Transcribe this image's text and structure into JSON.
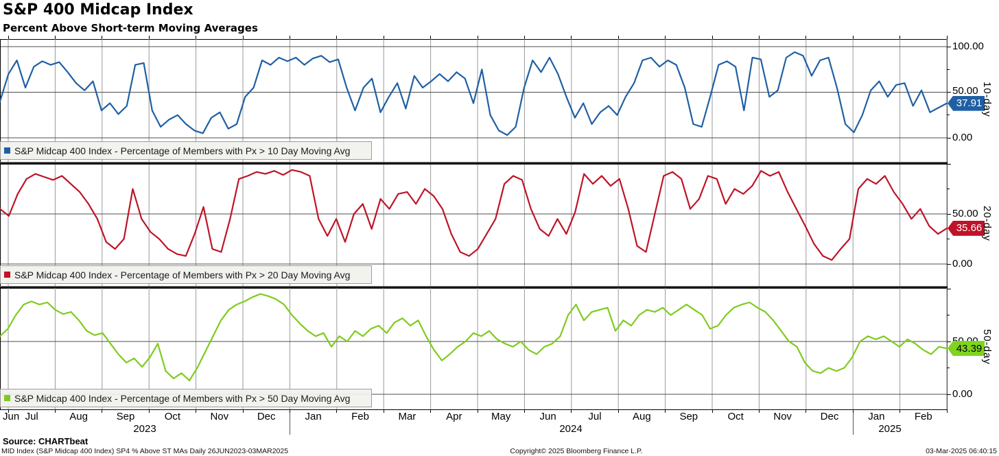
{
  "header": {
    "title": "S&P 400 Midcap Index",
    "subtitle": "Percent Above Short-term Moving Averages"
  },
  "colors": {
    "blue": "#1f5fa3",
    "red": "#be1328",
    "green": "#7ecb1d",
    "grid_vertical": "#999999",
    "grid_horizontal": "#4d4d4d",
    "frame": "#000000",
    "legend_bg": "#f1f1ee"
  },
  "panels": [
    {
      "axis_label": "10-day",
      "last_value": "37.91",
      "legend": "S&P Midcap 400 Index - Percentage of Members with Px > 10 Day Moving Avg",
      "yticks": {
        "t100": "100.00",
        "t50": "50.00",
        "t0": "0.00"
      }
    },
    {
      "axis_label": "20-day",
      "last_value": "35.66",
      "legend": "S&P Midcap 400 Index - Percentage of Members with Px > 20 Day Moving Avg",
      "yticks": {
        "t50": "50.00",
        "t0": "0.00"
      }
    },
    {
      "axis_label": "50-day",
      "last_value": "43.39",
      "legend": "S&P Midcap 400 Index - Percentage of Members with Px > 50 Day Moving Avg",
      "yticks": {
        "t50": "50.00",
        "t0": "0.00"
      }
    }
  ],
  "x_axis": {
    "months": [
      "Jun",
      "Jul",
      "Aug",
      "Sep",
      "Oct",
      "Nov",
      "Dec",
      "Jan",
      "Feb",
      "Mar",
      "Apr",
      "May",
      "Jun",
      "Jul",
      "Aug",
      "Sep",
      "Oct",
      "Nov",
      "Dec",
      "Jan",
      "Feb"
    ],
    "years": [
      "2023",
      "2024",
      "2025"
    ]
  },
  "footer": {
    "source": "Source: CHARTbeat",
    "meta": "MID Index (S&P Midcap 400 Index) SP4 % Above ST MAs  Daily 26JUN2023-03MAR2025",
    "copyright": "Copyright© 2025 Bloomberg Finance L.P.",
    "datetime": "03-Mar-2025 06:40:15"
  },
  "chart_data": {
    "type": "line",
    "title": "S&P 400 Midcap Index - Percent Above Short-term Moving Averages",
    "x_range": [
      "26JUN2023",
      "03MAR2025"
    ],
    "ylim": [
      0,
      100
    ],
    "yticks": [
      0,
      50,
      100
    ],
    "grid": true,
    "legend_position": "bottom-left-per-panel",
    "series": [
      {
        "name": "S&P Midcap 400 Index - Percentage of Members with Px > 10 Day Moving Avg",
        "panel": "10-day",
        "color": "#1f5fa3",
        "last": 37.91,
        "values": [
          40,
          70,
          85,
          55,
          78,
          84,
          80,
          83,
          72,
          60,
          52,
          62,
          30,
          38,
          26,
          35,
          80,
          82,
          30,
          12,
          20,
          25,
          15,
          8,
          5,
          22,
          28,
          10,
          15,
          45,
          55,
          85,
          80,
          88,
          84,
          88,
          80,
          87,
          90,
          83,
          86,
          55,
          30,
          55,
          65,
          28,
          45,
          60,
          32,
          68,
          55,
          62,
          70,
          62,
          72,
          65,
          38,
          75,
          25,
          8,
          3,
          12,
          55,
          85,
          72,
          88,
          70,
          45,
          22,
          38,
          15,
          28,
          35,
          25,
          45,
          60,
          85,
          88,
          78,
          85,
          80,
          55,
          15,
          12,
          45,
          80,
          84,
          78,
          30,
          88,
          86,
          45,
          52,
          88,
          94,
          90,
          68,
          85,
          88,
          55,
          15,
          6,
          25,
          52,
          62,
          45,
          58,
          60,
          35,
          52,
          28,
          33,
          37.91
        ]
      },
      {
        "name": "S&P Midcap 400 Index - Percentage of Members with Px > 20 Day Moving Avg",
        "panel": "20-day",
        "color": "#be1328",
        "last": 35.66,
        "values": [
          55,
          48,
          70,
          85,
          90,
          87,
          84,
          88,
          80,
          72,
          60,
          45,
          22,
          15,
          25,
          75,
          45,
          32,
          25,
          15,
          10,
          8,
          30,
          57,
          15,
          12,
          45,
          85,
          88,
          92,
          90,
          93,
          89,
          94,
          92,
          88,
          45,
          28,
          45,
          22,
          50,
          60,
          35,
          65,
          55,
          70,
          72,
          60,
          75,
          68,
          55,
          30,
          12,
          8,
          15,
          30,
          45,
          80,
          88,
          84,
          55,
          35,
          28,
          45,
          30,
          52,
          90,
          80,
          88,
          78,
          85,
          55,
          18,
          12,
          50,
          88,
          92,
          85,
          55,
          65,
          88,
          85,
          60,
          75,
          70,
          78,
          93,
          88,
          92,
          72,
          55,
          38,
          20,
          8,
          4,
          15,
          25,
          75,
          85,
          80,
          88,
          72,
          60,
          45,
          55,
          38,
          30,
          35.66
        ]
      },
      {
        "name": "S&P Midcap 400 Index - Percentage of Members with Px > 50 Day Moving Avg",
        "panel": "50-day",
        "color": "#7ecb1d",
        "last": 43.39,
        "values": [
          55,
          62,
          75,
          85,
          88,
          85,
          87,
          80,
          76,
          78,
          70,
          60,
          56,
          58,
          48,
          38,
          30,
          34,
          26,
          35,
          48,
          22,
          15,
          20,
          13,
          25,
          40,
          55,
          70,
          80,
          85,
          88,
          92,
          95,
          93,
          90,
          85,
          75,
          67,
          60,
          55,
          58,
          45,
          55,
          50,
          60,
          55,
          62,
          65,
          58,
          68,
          72,
          65,
          70,
          55,
          42,
          32,
          38,
          45,
          50,
          58,
          55,
          60,
          52,
          48,
          45,
          50,
          42,
          38,
          45,
          48,
          55,
          75,
          85,
          70,
          78,
          80,
          82,
          60,
          70,
          65,
          75,
          80,
          78,
          82,
          75,
          80,
          85,
          80,
          75,
          62,
          65,
          75,
          82,
          85,
          87,
          82,
          78,
          70,
          60,
          50,
          45,
          30,
          22,
          20,
          25,
          22,
          25,
          35,
          50,
          55,
          52,
          55,
          50,
          45,
          52,
          48,
          42,
          38,
          45,
          43.39
        ]
      }
    ]
  }
}
